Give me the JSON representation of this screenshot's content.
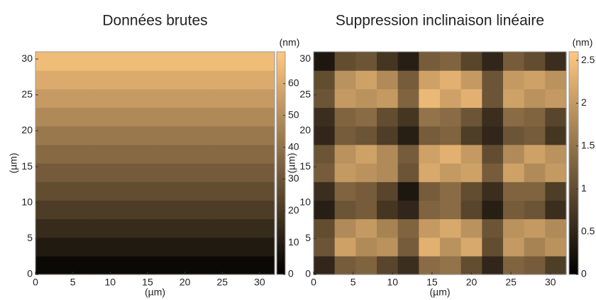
{
  "chart_data": [
    {
      "type": "heatmap",
      "title": "Données brutes",
      "xlabel": "(µm)",
      "ylabel": "(µm)",
      "colorbar_label": "(nm)",
      "xlim": [
        0,
        32
      ],
      "ylim": [
        0,
        31
      ],
      "xticks": [
        0,
        5,
        10,
        15,
        20,
        25,
        30
      ],
      "yticks": [
        0,
        5,
        10,
        15,
        20,
        25,
        30
      ],
      "zlim": [
        0,
        70
      ],
      "zticks": [
        0,
        10,
        20,
        30,
        40,
        50,
        60
      ],
      "colormap": [
        "#000000",
        "#ffc880"
      ],
      "z": [
        [
          3,
          3,
          3,
          3
        ],
        [
          9,
          9,
          9,
          9
        ],
        [
          15,
          15,
          15,
          15
        ],
        [
          21,
          21,
          21,
          21
        ],
        [
          27,
          27,
          27,
          27
        ],
        [
          32,
          32,
          32,
          32
        ],
        [
          37,
          37,
          37,
          37
        ],
        [
          42,
          42,
          42,
          42
        ],
        [
          48,
          48,
          48,
          48
        ],
        [
          54,
          54,
          54,
          54
        ],
        [
          60,
          60,
          60,
          60
        ],
        [
          66,
          66,
          66,
          66
        ]
      ]
    },
    {
      "type": "heatmap",
      "title": "Suppression inclinaison linéaire",
      "xlabel": "(µm)",
      "ylabel": "(µm)",
      "colorbar_label": "(nm)",
      "xlim": [
        0,
        32
      ],
      "ylim": [
        0,
        31
      ],
      "xticks": [
        0,
        5,
        10,
        15,
        20,
        25,
        30
      ],
      "yticks": [
        0,
        5,
        10,
        15,
        20,
        25,
        30
      ],
      "zlim": [
        0,
        2.6
      ],
      "zticks": [
        0,
        0.5,
        1,
        1.5,
        2,
        2.5
      ],
      "colormap": [
        "#000000",
        "#ffc880"
      ],
      "z": [
        [
          0.5,
          1.2,
          1.3,
          0.9,
          0.6,
          1.4,
          1.5,
          1.0,
          0.5,
          1.3,
          1.2,
          0.8
        ],
        [
          1.1,
          2.1,
          1.8,
          1.9,
          1.2,
          2.3,
          1.9,
          2.2,
          1.0,
          2.0,
          1.7,
          1.9
        ],
        [
          1.0,
          1.8,
          2.0,
          1.7,
          1.3,
          2.0,
          2.2,
          1.9,
          1.1,
          1.9,
          2.0,
          1.8
        ],
        [
          0.4,
          1.1,
          1.2,
          0.7,
          0.5,
          1.3,
          1.4,
          0.9,
          0.4,
          1.2,
          1.1,
          0.6
        ],
        [
          0.6,
          1.3,
          1.2,
          0.9,
          0.3,
          1.2,
          1.4,
          1.0,
          0.6,
          1.3,
          1.3,
          0.8
        ],
        [
          1.2,
          2.0,
          1.9,
          1.8,
          1.1,
          2.2,
          2.0,
          2.1,
          1.2,
          2.1,
          1.8,
          2.0
        ],
        [
          1.1,
          1.9,
          2.1,
          1.8,
          1.2,
          2.1,
          2.3,
          2.0,
          1.0,
          1.8,
          2.1,
          1.9
        ],
        [
          0.5,
          1.2,
          1.1,
          0.8,
          0.4,
          1.2,
          1.3,
          0.8,
          0.5,
          1.1,
          1.2,
          0.7
        ],
        [
          0.6,
          1.3,
          1.4,
          1.0,
          0.7,
          1.5,
          1.4,
          1.1,
          0.6,
          1.4,
          1.3,
          0.9
        ],
        [
          1.1,
          2.0,
          1.9,
          2.0,
          1.3,
          2.4,
          2.1,
          2.3,
          1.1,
          2.1,
          1.9,
          2.0
        ],
        [
          1.0,
          1.9,
          2.1,
          1.8,
          1.2,
          2.1,
          2.3,
          2.0,
          1.1,
          2.0,
          2.1,
          1.9
        ],
        [
          0.3,
          1.0,
          1.1,
          0.7,
          0.4,
          1.2,
          1.3,
          0.9,
          0.5,
          1.2,
          1.0,
          0.6
        ]
      ]
    }
  ]
}
